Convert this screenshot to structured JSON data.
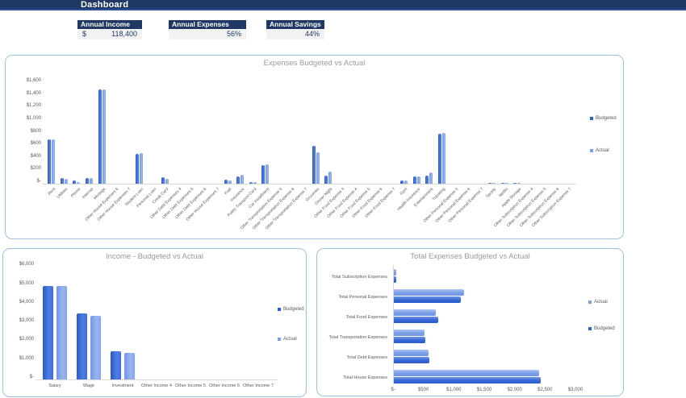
{
  "header": {
    "title": "Dashboard"
  },
  "kpis": [
    {
      "label": "Annual Income",
      "prefix": "$",
      "value": "118,400"
    },
    {
      "label": "Annual Expenses",
      "prefix": "",
      "value": "56%"
    },
    {
      "label": "Annual Savings",
      "prefix": "",
      "value": "44%"
    }
  ],
  "colors": {
    "header_navy": "#1F3864",
    "card_border": "#9DC3E6",
    "kpi_value_bg": "#F2F2F2",
    "title_gray": "#9A9A9A",
    "budgeted": "#2E5FCF",
    "actual": "#7EA0EA"
  },
  "chart_data": [
    {
      "id": "expenses",
      "type": "bar",
      "title": "Expenses Budgeted vs Actual",
      "legend_position": "right",
      "grid": false,
      "ylim": [
        0,
        1600
      ],
      "ytick_step": 200,
      "ytick_labels": [
        "$-",
        "$200",
        "$400",
        "$600",
        "$800",
        "$1,000",
        "$1,200",
        "$1,400",
        "$1,600"
      ],
      "categories": [
        "Rent",
        "Utilities",
        "Phone",
        "Internet",
        "Mortage",
        "Other House Expenses 6",
        "Other House Expenses 7",
        "Student Loan",
        "Personal Loan",
        "Credit Card",
        "Other Debt Expenses 4",
        "Other Debt Expenses 5",
        "Other Debt Expenses 6",
        "Other House Expenses 7",
        "Fuel",
        "Insurance",
        "Public Transport Card",
        "Car Installment",
        "Other Transportation Expense 5",
        "Other Transportation Expense 6",
        "Other Transportation Expense 7",
        "Groceries",
        "Dinner Night",
        "Other Food Expense 3",
        "Other Food Expense 4",
        "Other Food Expense 5",
        "Other Food Expense 6",
        "Other Food Expense 7",
        "Gym",
        "Health Insurance",
        "Entertainment",
        "Traveling",
        "Other Personal Expense 5",
        "Other Personal Expense 6",
        "Other Personal Expense 7",
        "Spotify",
        "Netflix",
        "Apple Storage",
        "Other Subscription Expense 4",
        "Other Subscription Expense 5",
        "Other Subscription Expense 6",
        "Other Subscription Expense 7"
      ],
      "series": [
        {
          "name": "Budgeted",
          "values": [
            700,
            90,
            45,
            85,
            1500,
            0,
            0,
            480,
            0,
            100,
            0,
            0,
            0,
            0,
            70,
            120,
            25,
            300,
            0,
            0,
            0,
            600,
            130,
            0,
            0,
            0,
            0,
            0,
            50,
            120,
            130,
            800,
            0,
            0,
            0,
            15,
            15,
            15,
            0,
            0,
            0,
            0
          ]
        },
        {
          "name": "Actual",
          "values": [
            700,
            80,
            25,
            85,
            1500,
            0,
            0,
            490,
            0,
            80,
            0,
            0,
            0,
            0,
            50,
            135,
            20,
            305,
            0,
            0,
            0,
            500,
            190,
            0,
            0,
            0,
            0,
            0,
            45,
            120,
            175,
            810,
            0,
            0,
            0,
            15,
            15,
            10,
            0,
            0,
            0,
            0
          ]
        }
      ]
    },
    {
      "id": "income",
      "type": "bar",
      "title": "Income - Budgeted vs Actual",
      "legend_position": "right",
      "grid": false,
      "ylim": [
        0,
        6000
      ],
      "ytick_step": 1000,
      "ytick_labels": [
        "$-",
        "$1,000",
        "$2,000",
        "$3,000",
        "$4,000",
        "$5,000",
        "$6,000"
      ],
      "categories": [
        "Salary",
        "Wage",
        "Investment",
        "Other Income 4",
        "Other Income 5",
        "Other Income 6",
        "Other Income 7"
      ],
      "series": [
        {
          "name": "Budgeted",
          "values": [
            5000,
            3500,
            1500,
            0,
            0,
            0,
            0
          ]
        },
        {
          "name": "Actual",
          "values": [
            5000,
            3400,
            1400,
            0,
            0,
            0,
            0
          ]
        }
      ]
    },
    {
      "id": "totals",
      "type": "hbar",
      "title": "Total Expenses Budgeted vs Actual",
      "legend_position": "right",
      "grid": false,
      "xlim": [
        0,
        3000
      ],
      "xtick_step": 500,
      "xtick_labels": [
        "$-",
        "$500",
        "$1,000",
        "$1,500",
        "$2,000",
        "$2,500",
        "$3,000"
      ],
      "categories": [
        "Total Subscription Expenses",
        "Total Personal Expenses",
        "Total Food Expenses",
        "Total Transporation Expenses",
        "Total Debt Expenses",
        "Total House Expenses"
      ],
      "series": [
        {
          "name": "Actual",
          "values": [
            40,
            1150,
            690,
            510,
            570,
            2390
          ]
        },
        {
          "name": "Budgeted",
          "values": [
            45,
            1100,
            730,
            515,
            580,
            2420
          ]
        }
      ]
    }
  ]
}
